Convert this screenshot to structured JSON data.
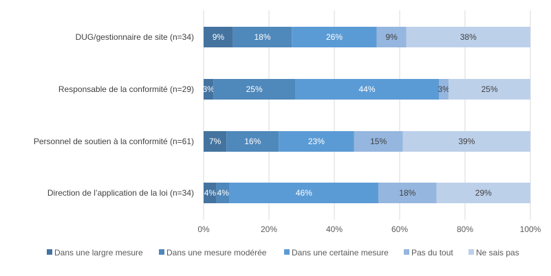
{
  "chart_data": {
    "type": "bar",
    "orientation": "horizontal",
    "stacked": "100%",
    "categories": [
      "DUG/gestionnaire de site (n=34)",
      "Responsable de la conformité (n=29)",
      "Personnel de soutien à la conformité (n=61)",
      "Direction de l’application de la loi (n=34)"
    ],
    "series": [
      {
        "name": "Dans une largre mesure",
        "color": "#44739f",
        "label_color": "#ffffff",
        "values": [
          9,
          3,
          7,
          4
        ]
      },
      {
        "name": "Dans une mesure modérée",
        "color": "#4f88bb",
        "label_color": "#ffffff",
        "values": [
          18,
          25,
          16,
          4
        ]
      },
      {
        "name": "Dans une certaine mesure",
        "color": "#5b9bd5",
        "label_color": "#ffffff",
        "values": [
          26,
          44,
          23,
          46
        ]
      },
      {
        "name": "Pas du tout",
        "color": "#95b6de",
        "label_color": "#404040",
        "values": [
          9,
          3,
          15,
          18
        ]
      },
      {
        "name": "Ne sais pas",
        "color": "#bdd0ea",
        "label_color": "#404040",
        "values": [
          38,
          25,
          39,
          29
        ]
      }
    ],
    "xlim": [
      0,
      100
    ],
    "xticks": [
      "0%",
      "20%",
      "40%",
      "60%",
      "80%",
      "100%"
    ],
    "grid": true,
    "legend": "bottom"
  }
}
